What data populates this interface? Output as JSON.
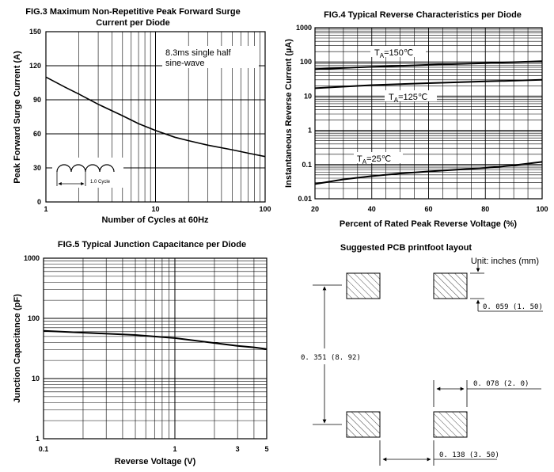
{
  "chart_data": [
    {
      "id": "fig3",
      "type": "line",
      "title_lines": [
        "FIG.3 Maximum Non-Repetitive Peak Forward Surge",
        "Current per Diode"
      ],
      "xlabel": "Number of Cycles at 60Hz",
      "ylabel": "Peak Forward Surge Current (A)",
      "xscale": "log",
      "xlim": [
        1,
        100
      ],
      "ylim": [
        0,
        150
      ],
      "x_ticks": [
        "1",
        "10",
        "100"
      ],
      "y_ticks": [
        "0",
        "30",
        "60",
        "90",
        "120",
        "150"
      ],
      "series": [
        {
          "name": "surge",
          "x": [
            1,
            1.5,
            2,
            3,
            5,
            7,
            10,
            15,
            20,
            30,
            50,
            70,
            100
          ],
          "y": [
            110,
            101,
            95,
            86,
            76,
            69,
            63,
            57,
            54,
            50,
            46,
            43,
            40
          ]
        }
      ],
      "annotation_lines": [
        "8.3ms single half",
        "sine-wave"
      ],
      "inset_label": "1.0 Cycle"
    },
    {
      "id": "fig4",
      "type": "line",
      "title_lines": [
        "FIG.4 Typical Reverse Characteristics per Diode"
      ],
      "xlabel": "Percent of Rated Peak Reverse Voltage (%)",
      "ylabel": "Instantaneous Reverse Current (µA)",
      "yscale": "log",
      "xlim": [
        20,
        100
      ],
      "ylim": [
        0.01,
        1000
      ],
      "x_ticks": [
        "20",
        "40",
        "60",
        "80",
        "100"
      ],
      "y_ticks": [
        "0.01",
        "0.1",
        "1",
        "10",
        "100",
        "1000"
      ],
      "series": [
        {
          "name": "TA=150℃",
          "x": [
            20,
            40,
            60,
            80,
            100
          ],
          "y": [
            62,
            72,
            82,
            92,
            105
          ]
        },
        {
          "name": "TA=125℃",
          "x": [
            20,
            40,
            60,
            80,
            100
          ],
          "y": [
            17,
            21,
            24,
            27,
            30
          ]
        },
        {
          "name": "TA=25℃",
          "x": [
            20,
            30,
            40,
            50,
            60,
            70,
            80,
            90,
            100
          ],
          "y": [
            0.027,
            0.037,
            0.046,
            0.055,
            0.063,
            0.071,
            0.08,
            0.095,
            0.12
          ]
        }
      ],
      "labels": [
        {
          "t": "T",
          "sub": "A",
          "rest": "=150℃"
        },
        {
          "t": "T",
          "sub": "A",
          "rest": "=125℃"
        },
        {
          "t": "T",
          "sub": "A",
          "rest": "=25℃"
        }
      ]
    },
    {
      "id": "fig5",
      "type": "line",
      "title_lines": [
        "FIG.5 Typical Junction Capacitance per Diode"
      ],
      "xlabel": "Reverse Voltage (V)",
      "ylabel": "Junction Capacitance (pF)",
      "yscale": "log",
      "xlim": [
        0.1,
        5
      ],
      "ylim": [
        1,
        1000
      ],
      "x_ticks": [
        "0.1",
        "1",
        "3",
        "5"
      ],
      "y_ticks": [
        "1",
        "10",
        "100",
        "1000"
      ],
      "series": [
        {
          "name": "capacitance",
          "x": [
            0.1,
            0.5,
            1,
            2,
            3,
            4,
            5
          ],
          "y": [
            62,
            53,
            47,
            39,
            35,
            33,
            31
          ]
        }
      ]
    }
  ],
  "pcb": {
    "title": "Suggested PCB printfoot layout",
    "unit": "Unit: inches (mm)",
    "dim_pad": "0. 059 (1. 50)",
    "dim_height": "0. 351 (8. 92)",
    "dim_gap": "0. 078 (2. 0)",
    "dim_width": "0. 138 (3. 50)"
  }
}
